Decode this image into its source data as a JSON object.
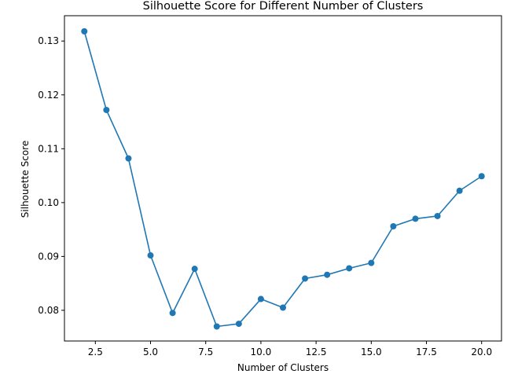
{
  "chart_data": {
    "type": "line",
    "title": "Silhouette Score for Different Number of Clusters",
    "xlabel": "Number of Clusters",
    "ylabel": "Silhouette Score",
    "xlim": [
      1.1,
      20.9
    ],
    "ylim": [
      0.0743,
      0.1347
    ],
    "xticks": [
      2.5,
      5.0,
      7.5,
      10.0,
      12.5,
      15.0,
      17.5,
      20.0
    ],
    "xtick_labels": [
      "2.5",
      "5.0",
      "7.5",
      "10.0",
      "12.5",
      "15.0",
      "17.5",
      "20.0"
    ],
    "yticks": [
      0.08,
      0.09,
      0.1,
      0.11,
      0.12,
      0.13
    ],
    "ytick_labels": [
      "0.08",
      "0.09",
      "0.10",
      "0.11",
      "0.12",
      "0.13"
    ],
    "grid": false,
    "legend": "none",
    "series": [
      {
        "color": "#1f77b4",
        "marker": "circle",
        "x": [
          2,
          3,
          4,
          5,
          6,
          7,
          8,
          9,
          10,
          11,
          12,
          13,
          14,
          15,
          16,
          17,
          18,
          19,
          20
        ],
        "y": [
          0.1318,
          0.1172,
          0.1082,
          0.0902,
          0.0795,
          0.0877,
          0.077,
          0.0775,
          0.0821,
          0.0805,
          0.0859,
          0.0866,
          0.0878,
          0.0888,
          0.0956,
          0.097,
          0.0975,
          0.1022,
          0.1049
        ]
      }
    ]
  }
}
